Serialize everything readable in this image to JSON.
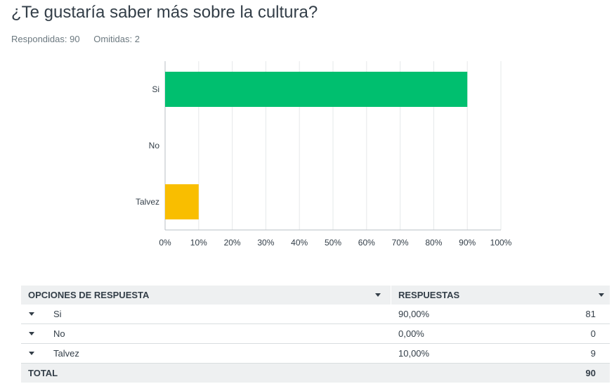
{
  "question": {
    "title": "¿Te gustaría saber más sobre la cultura?",
    "answered_label": "Respondidas: 90",
    "skipped_label": "Omitidas: 2"
  },
  "chart_data": {
    "type": "bar",
    "orientation": "horizontal",
    "categories": [
      "Si",
      "No",
      "Talvez"
    ],
    "values": [
      90,
      0,
      10
    ],
    "colors": [
      "#00bf6f",
      "#00bf6f",
      "#f9be00"
    ],
    "xlim": [
      0,
      100
    ],
    "x_ticks": [
      "0%",
      "10%",
      "20%",
      "30%",
      "40%",
      "50%",
      "60%",
      "70%",
      "80%",
      "90%",
      "100%"
    ],
    "grid": true
  },
  "table": {
    "header": {
      "option": "OPCIONES DE RESPUESTA",
      "responses": "RESPUESTAS"
    },
    "rows": [
      {
        "label": "Si",
        "percent": "90,00%",
        "count": "81"
      },
      {
        "label": "No",
        "percent": "0,00%",
        "count": "0"
      },
      {
        "label": "Talvez",
        "percent": "10,00%",
        "count": "9"
      }
    ],
    "total_label": "TOTAL",
    "total_value": "90"
  }
}
